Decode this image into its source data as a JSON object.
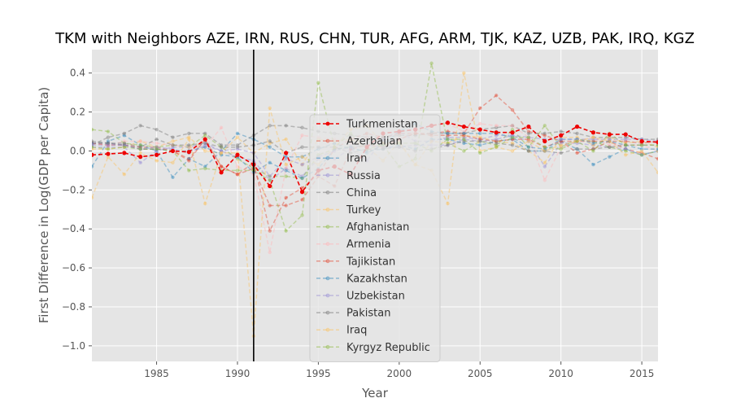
{
  "chart_data": {
    "type": "line",
    "title": "TKM with Neighbors AZE, IRN, RUS, CHN, TUR, AFG, ARM, TJK, KAZ, UZB, PAK, IRQ, KGZ",
    "xlabel": "Year",
    "ylabel": "First Difference in Log(GDP per Capita)",
    "xlim": [
      1981,
      2016
    ],
    "ylim": [
      -1.08,
      0.52
    ],
    "xticks": [
      1985,
      1990,
      1995,
      2000,
      2005,
      2010,
      2015
    ],
    "yticks": [
      0.4,
      0.2,
      0.0,
      -0.2,
      -0.4,
      -0.6,
      -0.8,
      -1.0
    ],
    "ytick_labels": [
      "0.4",
      "0.2",
      "0.0",
      "−0.2",
      "−0.4",
      "−0.6",
      "−0.8",
      "−1.0"
    ],
    "grid": true,
    "legend_position": "center",
    "vline": {
      "x": 1991,
      "color": "#000000"
    },
    "years": [
      1981,
      1982,
      1983,
      1984,
      1985,
      1986,
      1987,
      1988,
      1989,
      1990,
      1991,
      1992,
      1993,
      1994,
      1995,
      1996,
      1997,
      1998,
      1999,
      2000,
      2001,
      2002,
      2003,
      2004,
      2005,
      2006,
      2007,
      2008,
      2009,
      2010,
      2011,
      2012,
      2013,
      2014,
      2015,
      2016
    ],
    "series": [
      {
        "name": "Turkmenistan",
        "color": "#ee0000",
        "highlight": true,
        "values": [
          -0.02,
          -0.015,
          -0.01,
          -0.03,
          -0.02,
          0.0,
          -0.005,
          0.06,
          -0.11,
          -0.02,
          -0.07,
          -0.18,
          -0.01,
          -0.21,
          -0.1,
          -0.08,
          -0.12,
          0.02,
          0.09,
          0.1,
          0.11,
          0.13,
          0.145,
          0.125,
          0.11,
          0.095,
          0.095,
          0.125,
          0.05,
          0.08,
          0.125,
          0.095,
          0.085,
          0.085,
          0.05,
          0.045
        ]
      },
      {
        "name": "Azerbaijan",
        "color": "#e24a33",
        "values": [
          0.04,
          0.04,
          0.03,
          0.02,
          0.02,
          0.0,
          -0.04,
          0.06,
          -0.08,
          -0.12,
          -0.06,
          -0.41,
          -0.24,
          -0.19,
          -0.12,
          0.01,
          0.06,
          0.09,
          0.07,
          0.09,
          0.09,
          0.09,
          0.1,
          0.09,
          0.22,
          0.285,
          0.21,
          0.1,
          0.08,
          0.05,
          -0.01,
          0.01,
          0.05,
          0.01,
          -0.01,
          -0.04
        ]
      },
      {
        "name": "Iran",
        "color": "#348abd",
        "values": [
          -0.08,
          0.05,
          0.08,
          0.03,
          0.0,
          -0.135,
          -0.04,
          -0.08,
          0.0,
          0.09,
          0.06,
          0.02,
          -0.03,
          -0.03,
          0.01,
          0.04,
          0.01,
          0.0,
          0.01,
          0.03,
          0.01,
          0.06,
          0.06,
          0.04,
          0.03,
          0.05,
          0.06,
          0.0,
          0.0,
          0.05,
          0.01,
          -0.07,
          -0.03,
          0.01,
          -0.02,
          0.0
        ]
      },
      {
        "name": "Russia",
        "color": "#988ed5",
        "values": [
          0.02,
          0.02,
          0.02,
          -0.06,
          0.0,
          0.02,
          0.02,
          0.04,
          0.0,
          -0.03,
          -0.05,
          -0.15,
          -0.09,
          -0.13,
          -0.04,
          -0.04,
          0.01,
          -0.05,
          0.06,
          0.1,
          0.05,
          0.05,
          0.07,
          0.07,
          0.06,
          0.08,
          0.08,
          0.05,
          -0.08,
          0.04,
          0.04,
          0.03,
          0.02,
          0.01,
          -0.02,
          0.0
        ]
      },
      {
        "name": "China",
        "color": "#777777",
        "values": [
          0.03,
          0.07,
          0.09,
          0.13,
          0.11,
          0.07,
          0.09,
          0.09,
          0.03,
          0.03,
          0.08,
          0.13,
          0.13,
          0.12,
          0.1,
          0.09,
          0.08,
          0.07,
          0.07,
          0.08,
          0.08,
          0.09,
          0.09,
          0.09,
          0.11,
          0.12,
          0.13,
          0.09,
          0.09,
          0.1,
          0.09,
          0.07,
          0.07,
          0.07,
          0.06,
          0.06
        ]
      },
      {
        "name": "Turkey",
        "color": "#fbc15e",
        "values": [
          0.01,
          0.01,
          0.02,
          0.05,
          0.02,
          0.05,
          0.07,
          0.0,
          -0.01,
          0.07,
          -0.01,
          0.04,
          0.06,
          -0.07,
          0.06,
          0.05,
          0.06,
          0.02,
          -0.05,
          0.05,
          -0.07,
          0.05,
          0.04,
          0.08,
          0.07,
          0.05,
          0.04,
          0.0,
          -0.06,
          0.07,
          0.07,
          0.03,
          0.07,
          0.04,
          0.05,
          0.02
        ]
      },
      {
        "name": "Afghanistan",
        "color": "#8eba42",
        "values": [
          0.11,
          0.1,
          0.04,
          0.03,
          0.02,
          0.03,
          0.02,
          0.08,
          0.02,
          -0.04,
          -0.09,
          -0.13,
          -0.13,
          -0.14,
          -0.02,
          0.01,
          0.02,
          0.03,
          0.03,
          -0.08,
          -0.04,
          0.45,
          0.04,
          0.0,
          0.05,
          0.03,
          0.11,
          0.02,
          0.13,
          0.02,
          0.06,
          0.05,
          0.02,
          0.0,
          -0.02,
          0.0
        ]
      },
      {
        "name": "Armenia",
        "color": "#ffb5b8",
        "values": [
          0.04,
          0.03,
          0.05,
          0.05,
          0.04,
          0.03,
          0.02,
          0.02,
          0.12,
          -0.08,
          -0.12,
          -0.52,
          -0.09,
          0.08,
          0.07,
          0.06,
          0.04,
          0.07,
          0.03,
          0.06,
          0.1,
          0.13,
          0.14,
          0.1,
          0.14,
          0.13,
          0.13,
          0.07,
          -0.15,
          0.02,
          0.05,
          0.07,
          0.03,
          0.03,
          0.03,
          0.0
        ]
      },
      {
        "name": "Tajikistan",
        "color": "#e24a33",
        "values": [
          0.04,
          0.03,
          0.03,
          0.01,
          0.01,
          0.0,
          -0.05,
          0.06,
          -0.08,
          -0.12,
          -0.09,
          -0.28,
          -0.28,
          -0.25,
          -0.13,
          -0.18,
          0.01,
          0.03,
          0.02,
          0.06,
          0.09,
          0.08,
          0.08,
          0.08,
          0.06,
          0.05,
          0.06,
          0.06,
          0.02,
          0.05,
          0.05,
          0.05,
          0.05,
          0.05,
          0.04,
          0.05
        ]
      },
      {
        "name": "Kazakhstan",
        "color": "#348abd",
        "values": [
          0.04,
          0.04,
          0.03,
          0.01,
          0.01,
          0.0,
          0.0,
          0.02,
          -0.02,
          -0.03,
          -0.11,
          -0.06,
          -0.1,
          -0.14,
          -0.09,
          0.01,
          0.02,
          -0.01,
          0.03,
          0.1,
          0.14,
          0.1,
          0.09,
          0.09,
          0.09,
          0.09,
          0.07,
          0.02,
          0.01,
          0.06,
          0.06,
          0.04,
          0.05,
          0.03,
          0.01,
          0.01
        ]
      },
      {
        "name": "Uzbekistan",
        "color": "#988ed5",
        "values": [
          0.03,
          0.03,
          0.03,
          0.01,
          0.02,
          0.01,
          -0.01,
          0.03,
          0.0,
          0.01,
          -0.01,
          -0.13,
          -0.04,
          -0.07,
          -0.03,
          0.0,
          0.02,
          0.03,
          0.02,
          0.02,
          0.03,
          0.03,
          0.03,
          0.06,
          0.05,
          0.06,
          0.08,
          0.07,
          0.06,
          0.06,
          0.06,
          0.06,
          0.06,
          0.06,
          0.06,
          0.05
        ]
      },
      {
        "name": "Pakistan",
        "color": "#777777",
        "values": [
          0.05,
          0.04,
          0.04,
          0.02,
          0.06,
          0.03,
          0.03,
          0.04,
          0.02,
          0.02,
          0.03,
          0.05,
          -0.01,
          0.02,
          0.02,
          0.02,
          -0.01,
          0.01,
          0.01,
          0.02,
          0.0,
          0.01,
          0.03,
          0.05,
          0.05,
          0.04,
          0.03,
          0.0,
          0.0,
          -0.01,
          0.01,
          0.01,
          0.02,
          0.03,
          0.03,
          0.03
        ]
      },
      {
        "name": "Iraq",
        "color": "#fbc15e",
        "values": [
          -0.24,
          -0.03,
          -0.12,
          -0.01,
          -0.05,
          -0.06,
          0.06,
          -0.27,
          -0.01,
          -0.01,
          -0.95,
          0.22,
          -0.07,
          -0.03,
          -0.07,
          0.02,
          0.11,
          0.13,
          0.04,
          0.04,
          -0.07,
          -0.1,
          -0.27,
          0.4,
          0.0,
          0.02,
          0.0,
          0.05,
          0.0,
          0.03,
          0.05,
          0.07,
          0.05,
          -0.02,
          0.0,
          -0.11
        ]
      },
      {
        "name": "Kyrgyz Republic",
        "color": "#8eba42",
        "values": [
          0.02,
          0.01,
          0.02,
          0.01,
          0.01,
          0.0,
          -0.1,
          -0.09,
          -0.1,
          -0.1,
          -0.1,
          -0.15,
          -0.41,
          -0.33,
          0.35,
          0.02,
          0.09,
          0.01,
          0.03,
          0.04,
          0.04,
          0.0,
          0.06,
          0.06,
          -0.01,
          0.02,
          0.07,
          0.07,
          0.02,
          0.01,
          0.05,
          0.0,
          0.09,
          0.03,
          0.03,
          0.03
        ]
      }
    ]
  }
}
